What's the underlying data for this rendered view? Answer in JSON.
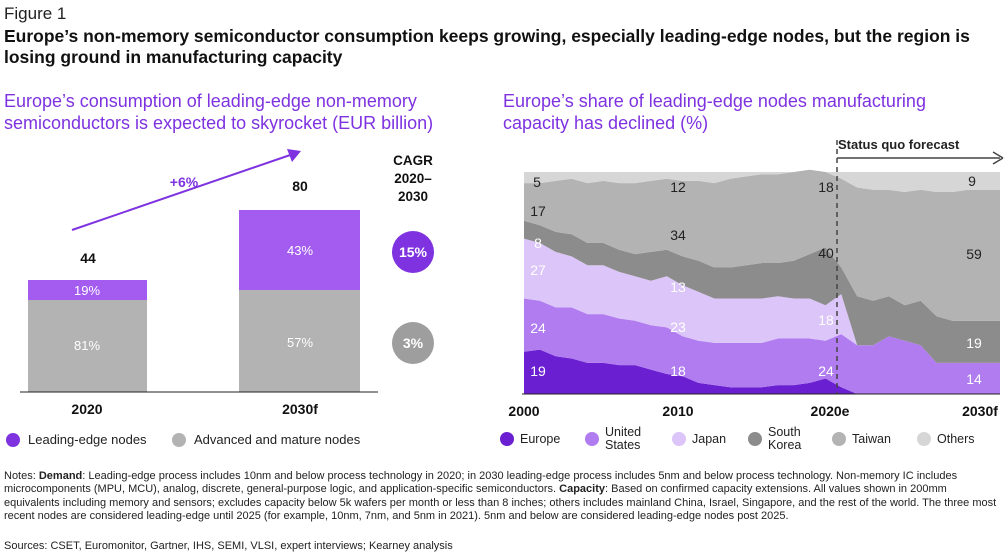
{
  "figure_label": "Figure 1",
  "headline": "Europe’s non-memory semiconductor consumption keeps growing, especially leading-edge nodes, but the region is losing ground in manufacturing capacity",
  "left_subtitle": "Europe’s consumption of leading-edge non-memory semiconductors is expected to skyrocket (EUR billion)",
  "right_subtitle": "Europe’s share of leading-edge nodes manufacturing capacity has declined (%)",
  "colors": {
    "purple": "#7e32e0",
    "light_purple": "#b07cf0",
    "lavender": "#dcc5f8",
    "gray": "#b3b3b3",
    "dark_gray": "#8c8c8c",
    "light_gray": "#cfcfcf",
    "lighter_gray": "#e3e3e3",
    "dark_purple": "#6a1fd0"
  },
  "chart_data": [
    {
      "type": "bar",
      "stacked": true,
      "categories": [
        "2020",
        "2030f"
      ],
      "totals": [
        "44",
        "80"
      ],
      "series": [
        {
          "name": "Advanced and mature nodes",
          "shares": [
            "81%",
            "57%"
          ]
        },
        {
          "name": "Leading-edge nodes",
          "shares": [
            "19%",
            "43%"
          ]
        }
      ],
      "growth_label": "+6%",
      "cagr_header": [
        "CAGR",
        "2020–",
        "2030"
      ],
      "cagr_values": [
        "15%",
        "3%"
      ]
    },
    {
      "type": "area",
      "stacked": true,
      "x": [
        2000,
        2001,
        2002,
        2003,
        2004,
        2005,
        2006,
        2007,
        2008,
        2009,
        2010,
        2011,
        2012,
        2013,
        2014,
        2015,
        2016,
        2017,
        2018,
        2019,
        2020,
        2021,
        2022,
        2023,
        2024,
        2025,
        2026,
        2027,
        2028,
        2029,
        2030
      ],
      "x_tick_labels": [
        "2000",
        "2010",
        "2020e",
        "2030f"
      ],
      "ylim": [
        0,
        100
      ],
      "forecast_label": "Status quo forecast",
      "series": [
        {
          "name": "Europe",
          "values": [
            19,
            20,
            17,
            16,
            14,
            14,
            13,
            13,
            11,
            9,
            8,
            5,
            4,
            3,
            3,
            3,
            4,
            4,
            5,
            7,
            3,
            0,
            0,
            0,
            0,
            0,
            0,
            0,
            0,
            0,
            0
          ]
        },
        {
          "name": "United States",
          "values": [
            24,
            22,
            22,
            23,
            22,
            22,
            21,
            20,
            20,
            21,
            18,
            19,
            19,
            20,
            20,
            20,
            21,
            21,
            20,
            17,
            24,
            22,
            22,
            26,
            24,
            22,
            14,
            14,
            14,
            14,
            14
          ]
        },
        {
          "name": "Japan",
          "values": [
            27,
            26,
            25,
            23,
            22,
            22,
            21,
            20,
            20,
            23,
            23,
            22,
            20,
            20,
            20,
            20,
            19,
            18,
            18,
            16,
            18,
            0,
            0,
            0,
            0,
            0,
            0,
            0,
            0,
            0,
            0
          ]
        },
        {
          "name": "South Korea",
          "values": [
            8,
            8,
            9,
            10,
            10,
            10,
            10,
            10,
            13,
            12,
            13,
            14,
            14,
            14,
            15,
            16,
            15,
            17,
            20,
            26,
            12,
            22,
            20,
            18,
            16,
            20,
            21,
            19,
            19,
            19,
            19
          ]
        },
        {
          "name": "Taiwan",
          "values": [
            17,
            19,
            23,
            25,
            27,
            28,
            30,
            32,
            32,
            32,
            34,
            36,
            38,
            40,
            40,
            40,
            40,
            40,
            38,
            34,
            40,
            49,
            50,
            48,
            51,
            50,
            56,
            58,
            59,
            59,
            59
          ]
        },
        {
          "name": "Others",
          "values": [
            5,
            5,
            4,
            3,
            5,
            4,
            5,
            5,
            4,
            3,
            4,
            4,
            5,
            3,
            2,
            1,
            1,
            0,
            0,
            0,
            3,
            7,
            8,
            8,
            9,
            8,
            9,
            9,
            8,
            8,
            8
          ]
        }
      ],
      "value_labels": [
        "5",
        "17",
        "8",
        "27",
        "24",
        "19",
        "12",
        "34",
        "13",
        "23",
        "18",
        "18",
        "40",
        "18",
        "24",
        "9",
        "59",
        "19",
        "14"
      ]
    }
  ],
  "right_legend": {
    "europe": "Europe",
    "us_line1": "United",
    "us_line2": "States",
    "japan": "Japan",
    "korea_line1": "South",
    "korea_line2": "Korea",
    "taiwan": "Taiwan",
    "others": "Others"
  },
  "notes": {
    "prefix": "Notes: ",
    "demand_label": "Demand",
    "demand_text": ": Leading-edge process includes 10nm and below process technology in 2020; in 2030 leading-edge process includes 5nm and below process technology. Non-memory IC includes microcomponents (MPU, MCU), analog, discrete, general-purpose logic, and application-specific semiconductors. ",
    "capacity_label": "Capacity",
    "capacity_text": ": Based on confirmed capacity extensions. All values shown in 200mm equivalents including memory and sensors; excludes capacity below 5k wafers per month or less than 8 inches; others includes mainland China, Israel, Singapore, and the rest of the world. The three most recent nodes are considered leading-edge until 2025  (for example, 10nm, 7nm, and 5nm in 2021). 5nm and below are considered leading-edge nodes post 2025."
  },
  "sources": "Sources: CSET, Euromonitor, Gartner, IHS, SEMI, VLSI, expert interviews; Kearney analysis"
}
